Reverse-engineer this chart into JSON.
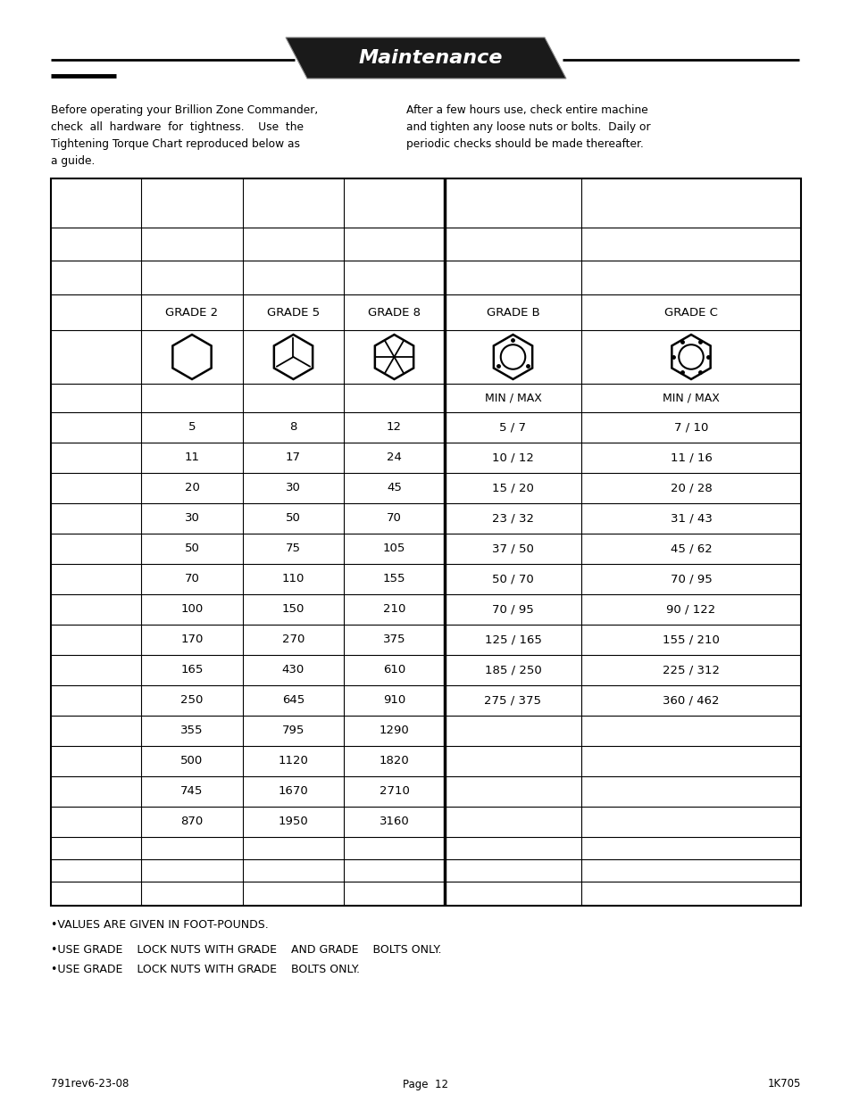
{
  "title": "Maintenance",
  "paragraph_left_lines": [
    "Before operating your Brillion Zone Commander,",
    "check  all  hardware  for  tightness.    Use  the",
    "Tightening Torque Chart reproduced below as",
    "a guide."
  ],
  "paragraph_right_lines": [
    "After a few hours use, check entire machine",
    "and tighten any loose nuts or bolts.  Daily or",
    "periodic checks should be made thereafter."
  ],
  "grade_labels": [
    "GRADE 2",
    "GRADE 5",
    "GRADE 8",
    "GRADE B",
    "GRADE C"
  ],
  "minmax_label": "MIN / MAX",
  "data_rows": [
    [
      "5",
      "8",
      "12",
      "5 / 7",
      "7 / 10"
    ],
    [
      "11",
      "17",
      "24",
      "10 / 12",
      "11 / 16"
    ],
    [
      "20",
      "30",
      "45",
      "15 / 20",
      "20 / 28"
    ],
    [
      "30",
      "50",
      "70",
      "23 / 32",
      "31 / 43"
    ],
    [
      "50",
      "75",
      "105",
      "37 / 50",
      "45 / 62"
    ],
    [
      "70",
      "110",
      "155",
      "50 / 70",
      "70 / 95"
    ],
    [
      "100",
      "150",
      "210",
      "70 / 95",
      "90 / 122"
    ],
    [
      "170",
      "270",
      "375",
      "125 / 165",
      "155 / 210"
    ],
    [
      "165",
      "430",
      "610",
      "185 / 250",
      "225 / 312"
    ],
    [
      "250",
      "645",
      "910",
      "275 / 375",
      "360 / 462"
    ],
    [
      "355",
      "795",
      "1290",
      "",
      ""
    ],
    [
      "500",
      "1120",
      "1820",
      "",
      ""
    ],
    [
      "745",
      "1670",
      "2710",
      "",
      ""
    ],
    [
      "870",
      "1950",
      "3160",
      "",
      ""
    ],
    [
      "",
      "",
      "",
      "",
      ""
    ],
    [
      "",
      "",
      "",
      "",
      ""
    ],
    [
      "",
      "",
      "",
      "",
      ""
    ]
  ],
  "footnote1": "•VALUES ARE GIVEN IN FOOT-POUNDS.",
  "footnote2": "•USE GRADE    LOCK NUTS WITH GRADE    AND GRADE    BOLTS ONLY.",
  "footnote3": "•USE GRADE    LOCK NUTS WITH GRADE    BOLTS ONLY.",
  "footer_left": "791rev6-23-08",
  "footer_center": "Page  12",
  "footer_right": "1K705",
  "bg_color": "#ffffff"
}
